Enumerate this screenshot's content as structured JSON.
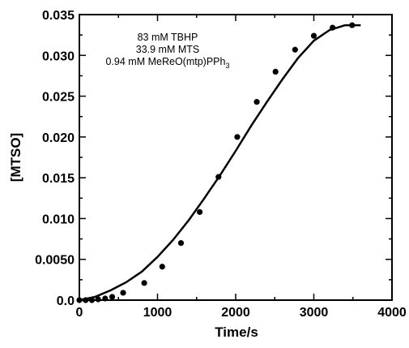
{
  "chart_data": {
    "type": "scatter",
    "xlabel": "Time/s",
    "ylabel": "[MTSO]",
    "xlim": [
      0,
      4000
    ],
    "ylim": [
      0,
      0.035
    ],
    "xticks": [
      0,
      1000,
      2000,
      3000,
      4000
    ],
    "xtick_labels": [
      "0",
      "1000",
      "2000",
      "3000",
      "4000"
    ],
    "yticks": [
      0,
      0.005,
      0.01,
      0.015,
      0.02,
      0.025,
      0.03,
      0.035
    ],
    "ytick_labels": [
      "0.0",
      "0.0050",
      "0.010",
      "0.015",
      "0.020",
      "0.025",
      "0.030",
      "0.035"
    ],
    "annotations": [
      "83 mM TBHP",
      "33.9 mM MTS",
      "0.94 mM MeReO(mtp)PPh",
      "3"
    ],
    "series": [
      {
        "kind": "points",
        "x": [
          0,
          80,
          160,
          240,
          330,
          420,
          560,
          830,
          1060,
          1300,
          1540,
          1780,
          2020,
          2270,
          2510,
          2760,
          3000,
          3240,
          3490
        ],
        "y": [
          0.0,
          0.0,
          0.0,
          0.0001,
          0.0002,
          0.0004,
          0.0009,
          0.0021,
          0.0041,
          0.007,
          0.0108,
          0.0151,
          0.02,
          0.0243,
          0.028,
          0.0307,
          0.0324,
          0.0334,
          0.0337
        ]
      },
      {
        "kind": "line",
        "x": [
          0,
          200,
          400,
          600,
          800,
          1000,
          1200,
          1400,
          1600,
          1800,
          2000,
          2200,
          2400,
          2600,
          2800,
          3000,
          3200,
          3400,
          3500,
          3600
        ],
        "y": [
          0.0,
          0.0004,
          0.0012,
          0.0022,
          0.0035,
          0.0053,
          0.0074,
          0.0098,
          0.0125,
          0.0153,
          0.0183,
          0.0214,
          0.0243,
          0.0271,
          0.0297,
          0.0318,
          0.0331,
          0.0337,
          0.0337,
          0.0337
        ]
      }
    ],
    "grid": false,
    "point_color": "#000000",
    "line_color": "#000000"
  }
}
